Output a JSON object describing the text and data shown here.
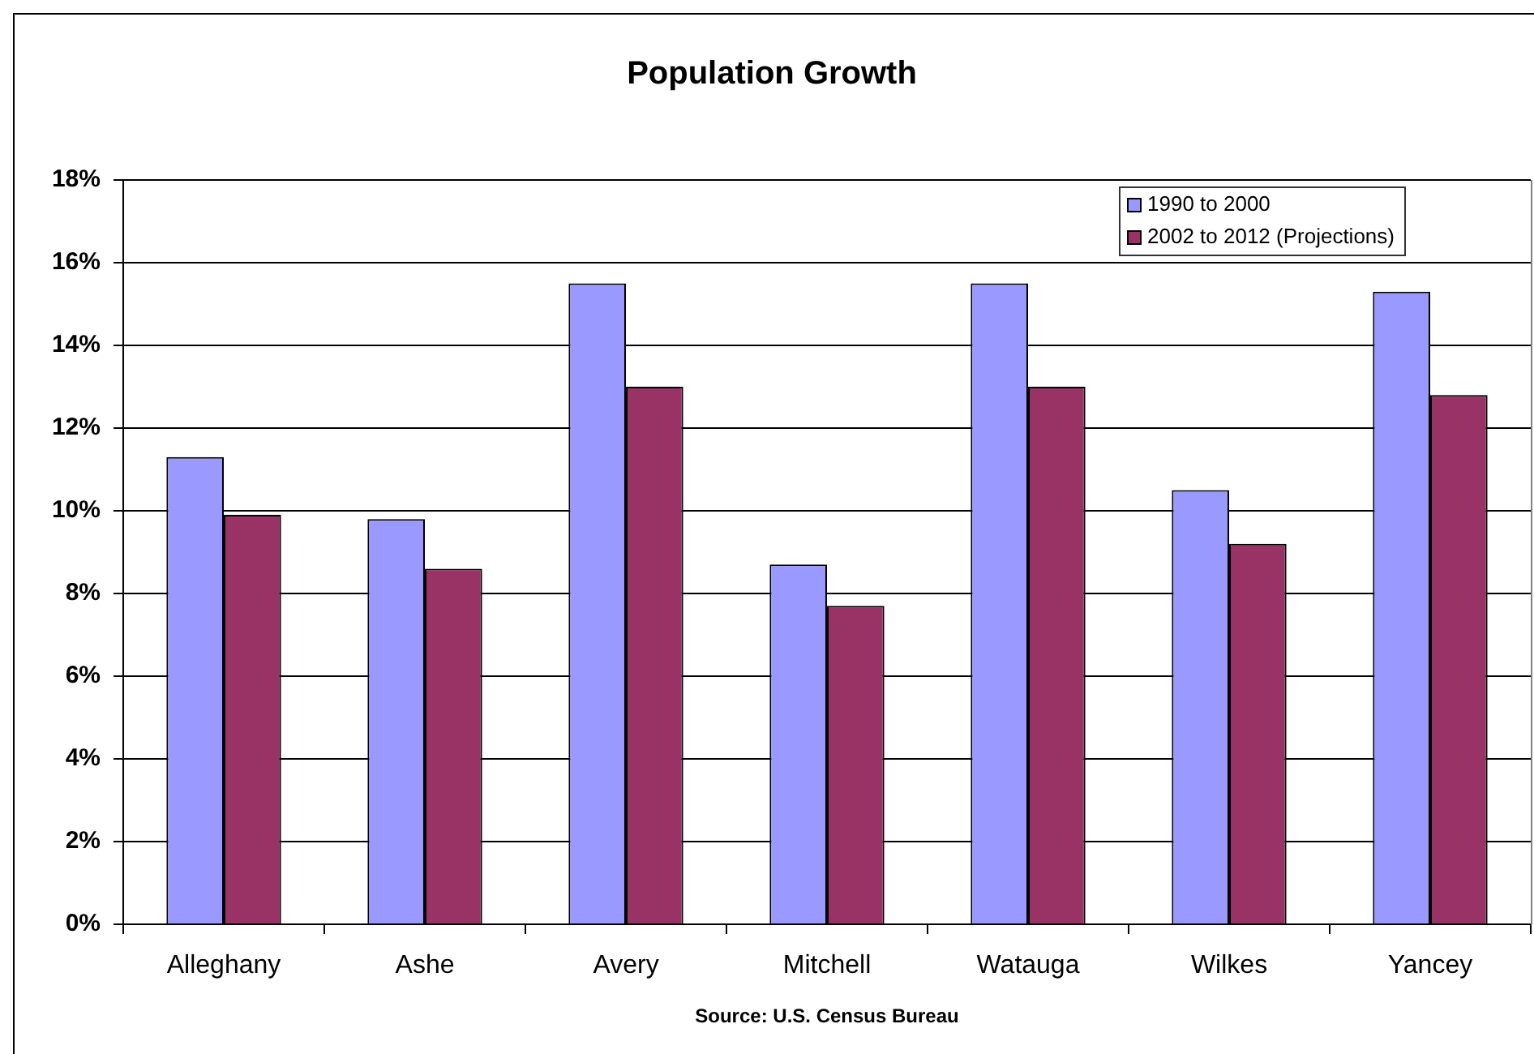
{
  "chart_data": {
    "type": "bar",
    "title": "Population Growth",
    "categories": [
      "Alleghany",
      "Ashe",
      "Avery",
      "Mitchell",
      "Watauga",
      "Wilkes",
      "Yancey"
    ],
    "series": [
      {
        "name": "1990 to 2000",
        "color": "#9999ff",
        "values": [
          11.3,
          9.8,
          15.5,
          8.7,
          15.5,
          10.5,
          15.3
        ]
      },
      {
        "name": "2002 to 2012 (Projections)",
        "color": "#993366",
        "values": [
          9.9,
          8.6,
          13.0,
          7.7,
          13.0,
          9.2,
          12.8
        ]
      }
    ],
    "ylim": [
      0,
      18
    ],
    "yticks": [
      {
        "value": 0,
        "label": "0%"
      },
      {
        "value": 2,
        "label": "2%"
      },
      {
        "value": 4,
        "label": "4%"
      },
      {
        "value": 6,
        "label": "6%"
      },
      {
        "value": 8,
        "label": "8%"
      },
      {
        "value": 10,
        "label": "10%"
      },
      {
        "value": 12,
        "label": "12%"
      },
      {
        "value": 14,
        "label": "14%"
      },
      {
        "value": 16,
        "label": "16%"
      },
      {
        "value": 18,
        "label": "18%"
      }
    ],
    "grid": "y",
    "legend": "top right",
    "annotations": [
      "Source: U.S. Census Bureau"
    ]
  }
}
